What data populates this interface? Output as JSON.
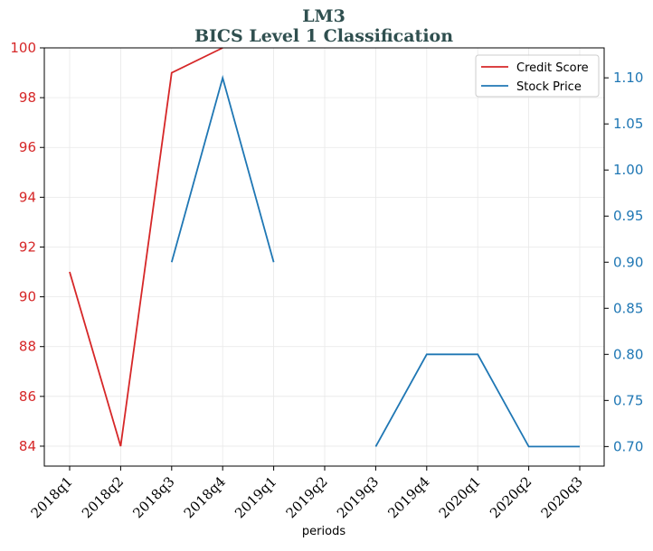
{
  "chart_data": {
    "type": "line",
    "title": "LM3",
    "subtitle": "BICS Level 1 Classification",
    "xlabel": "periods",
    "ylabel_left": "",
    "ylabel_right": "",
    "categories": [
      "2018q1",
      "2018q2",
      "2018q3",
      "2018q4",
      "2019q1",
      "2019q2",
      "2019q3",
      "2019q4",
      "2020q1",
      "2020q2",
      "2020q3"
    ],
    "left_axis": {
      "ylim": [
        83.2,
        100
      ],
      "ticks": [
        84,
        86,
        88,
        90,
        92,
        94,
        96,
        98,
        100
      ],
      "color": "#d62728"
    },
    "right_axis": {
      "ylim": [
        0.6788,
        1.1325
      ],
      "ticks": [
        0.7,
        0.75,
        0.8,
        0.85,
        0.9,
        0.95,
        1.0,
        1.05,
        1.1
      ],
      "tick_labels": [
        "0.70",
        "0.75",
        "0.80",
        "0.85",
        "0.90",
        "0.95",
        "1.00",
        "1.05",
        "1.10"
      ],
      "color": "#1f77b4"
    },
    "grid": true,
    "legend_position": "top-right",
    "series": [
      {
        "name": "Credit Score",
        "axis": "left",
        "color": "#d62728",
        "values": [
          91,
          84,
          99,
          100.2,
          null,
          null,
          null,
          null,
          null,
          null,
          null
        ]
      },
      {
        "name": "Stock Price",
        "axis": "right",
        "color": "#1f77b4",
        "values": [
          null,
          null,
          0.9,
          1.1,
          0.9,
          null,
          0.7,
          0.8,
          0.8,
          0.7,
          0.7
        ]
      }
    ]
  }
}
